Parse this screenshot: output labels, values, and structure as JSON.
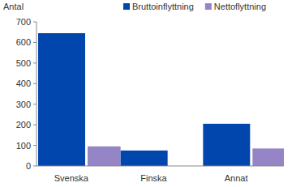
{
  "chart_data": {
    "type": "bar",
    "y_label": "Antal",
    "categories": [
      "Svenska",
      "Finska",
      "Annat"
    ],
    "series": [
      {
        "name": "Bruttoinflyttning",
        "color": "#0046ad",
        "values": [
          645,
          75,
          205
        ]
      },
      {
        "name": "Nettoflyttning",
        "color": "#9585c6",
        "values": [
          95,
          0,
          85
        ]
      }
    ],
    "ylim": [
      0,
      700
    ],
    "yticks": [
      0,
      100,
      200,
      300,
      400,
      500,
      600,
      700
    ],
    "grid": false,
    "legend": "top"
  }
}
